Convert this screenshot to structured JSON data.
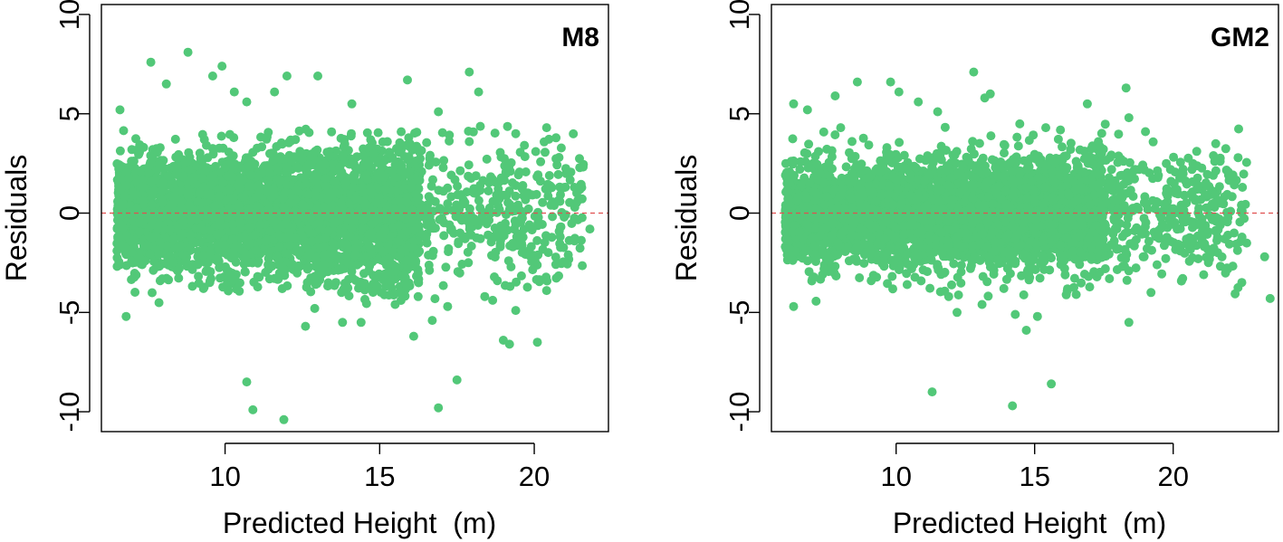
{
  "chart_data": [
    {
      "type": "scatter",
      "title": "M8",
      "xlabel": "Predicted Height  (m)",
      "ylabel": "Residuals",
      "xlim": [
        6,
        22.4
      ],
      "ylim": [
        -11,
        10.5
      ],
      "xticks": [
        10,
        15,
        20
      ],
      "yticks": [
        -10,
        -5,
        0,
        5,
        10
      ],
      "xtick_labels": [
        "10",
        "15",
        "20"
      ],
      "ytick_labels": [
        "-10",
        "-5",
        "0",
        "5",
        "10"
      ],
      "point_color": "#52c878",
      "reference_line": {
        "y": 0,
        "color": "#e05050",
        "style": "dashed"
      },
      "series": [
        {
          "name": "M8 residuals",
          "points": [
            [
              6.6,
              5.2
            ],
            [
              6.8,
              -5.2
            ],
            [
              7.6,
              7.6
            ],
            [
              8.8,
              8.1
            ],
            [
              9.6,
              6.9
            ],
            [
              9.9,
              7.4
            ],
            [
              10.3,
              6.1
            ],
            [
              10.7,
              5.6
            ],
            [
              10.7,
              -8.5
            ],
            [
              10.9,
              -9.9
            ],
            [
              11.9,
              -10.4
            ],
            [
              12.0,
              6.9
            ],
            [
              12.6,
              -5.7
            ],
            [
              13.0,
              6.9
            ],
            [
              13.8,
              -5.5
            ],
            [
              14.4,
              -5.5
            ],
            [
              15.9,
              6.7
            ],
            [
              16.1,
              -6.2
            ],
            [
              16.9,
              -9.8
            ],
            [
              17.5,
              -8.4
            ],
            [
              17.9,
              7.1
            ],
            [
              18.2,
              6.1
            ],
            [
              18.4,
              -4.2
            ],
            [
              19.0,
              -6.4
            ],
            [
              19.2,
              -6.6
            ],
            [
              19.4,
              -4.9
            ],
            [
              20.1,
              -6.5
            ],
            [
              20.4,
              4.3
            ],
            [
              20.4,
              -3.9
            ],
            [
              21.1,
              -2.1
            ],
            [
              21.3,
              1.3
            ],
            [
              21.3,
              -1.4
            ],
            [
              21.8,
              -0.8
            ],
            [
              20.8,
              2.8
            ],
            [
              19.4,
              4.0
            ],
            [
              19.0,
              0.9
            ],
            [
              17.9,
              3.6
            ],
            [
              17.2,
              -4.7
            ],
            [
              16.7,
              -5.4
            ],
            [
              15.5,
              -4.6
            ],
            [
              11.6,
              6.1
            ],
            [
              8.1,
              6.5
            ],
            [
              9.3,
              -3.8
            ],
            [
              7.9,
              -3.4
            ],
            [
              6.6,
              -2.6
            ],
            [
              7.3,
              3.3
            ],
            [
              12.9,
              -4.8
            ],
            [
              14.1,
              5.5
            ],
            [
              16.9,
              5.1
            ],
            [
              18.9,
              -1.7
            ]
          ]
        }
      ]
    },
    {
      "type": "scatter",
      "title": "GM2",
      "xlabel": "Predicted Height  (m)",
      "ylabel": "Residuals",
      "xlim": [
        5.5,
        23.8
      ],
      "ylim": [
        -11,
        10.5
      ],
      "xticks": [
        10,
        15,
        20
      ],
      "yticks": [
        -10,
        -5,
        0,
        5,
        10
      ],
      "xtick_labels": [
        "10",
        "15",
        "20"
      ],
      "ytick_labels": [
        "-10",
        "-5",
        "0",
        "5",
        "10"
      ],
      "point_color": "#52c878",
      "reference_line": {
        "y": 0,
        "color": "#e05050",
        "style": "dashed"
      },
      "series": [
        {
          "name": "GM2 residuals",
          "points": [
            [
              6.3,
              5.5
            ],
            [
              6.3,
              -4.7
            ],
            [
              6.8,
              5.2
            ],
            [
              7.8,
              5.9
            ],
            [
              8.6,
              6.6
            ],
            [
              9.8,
              6.6
            ],
            [
              10.1,
              6.1
            ],
            [
              10.8,
              5.6
            ],
            [
              11.3,
              -9.0
            ],
            [
              12.2,
              -5.0
            ],
            [
              12.8,
              7.1
            ],
            [
              13.2,
              5.8
            ],
            [
              13.4,
              6.0
            ],
            [
              14.2,
              -9.7
            ],
            [
              14.3,
              -5.1
            ],
            [
              14.7,
              -5.9
            ],
            [
              15.1,
              -5.2
            ],
            [
              15.6,
              -8.6
            ],
            [
              16.9,
              5.5
            ],
            [
              18.3,
              6.3
            ],
            [
              18.4,
              -5.5
            ],
            [
              19.2,
              -4.0
            ],
            [
              20.3,
              -3.4
            ],
            [
              20.9,
              -2.3
            ],
            [
              21.1,
              -3.1
            ],
            [
              22.5,
              1.3
            ],
            [
              23.3,
              -2.2
            ],
            [
              23.5,
              -4.3
            ],
            [
              22.0,
              1.9
            ],
            [
              21.5,
              2.6
            ],
            [
              20.7,
              -1.3
            ],
            [
              19.0,
              4.1
            ],
            [
              18.4,
              4.8
            ],
            [
              17.7,
              -3.3
            ],
            [
              16.5,
              -4.1
            ],
            [
              13.1,
              -4.6
            ],
            [
              11.9,
              -4.2
            ],
            [
              10.4,
              -3.6
            ],
            [
              9.1,
              -3.4
            ],
            [
              7.4,
              -2.8
            ],
            [
              6.8,
              -2.4
            ],
            [
              7.2,
              3.1
            ],
            [
              8.0,
              4.3
            ],
            [
              11.5,
              5.1
            ],
            [
              15.4,
              4.3
            ],
            [
              17.3,
              3.6
            ],
            [
              19.9,
              2.2
            ],
            [
              20.4,
              0.9
            ],
            [
              21.7,
              -0.6
            ],
            [
              22.2,
              -1.0
            ]
          ]
        }
      ]
    }
  ]
}
